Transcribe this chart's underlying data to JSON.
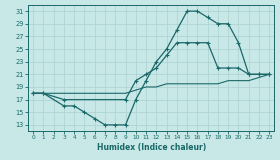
{
  "xlabel": "Humidex (Indice chaleur)",
  "bg_color": "#c8e8e8",
  "grid_color": "#b0d4d4",
  "line_color": "#1a6868",
  "xlim": [
    -0.5,
    23.5
  ],
  "ylim": [
    12,
    32
  ],
  "xticks": [
    0,
    1,
    2,
    3,
    4,
    5,
    6,
    7,
    8,
    9,
    10,
    11,
    12,
    13,
    14,
    15,
    16,
    17,
    18,
    19,
    20,
    21,
    22,
    23
  ],
  "yticks": [
    13,
    15,
    17,
    19,
    21,
    23,
    25,
    27,
    29,
    31
  ],
  "curve1_x": [
    0,
    1,
    3,
    4,
    5,
    6,
    7,
    8,
    9,
    10,
    11,
    12,
    13,
    14,
    15,
    16,
    17,
    18,
    19,
    20,
    21,
    22,
    23
  ],
  "curve1_y": [
    18,
    18,
    16,
    16,
    15,
    14,
    13,
    13,
    13,
    17,
    20,
    23,
    25,
    28,
    31,
    31,
    30,
    29,
    29,
    26,
    21,
    21,
    21
  ],
  "curve2_x": [
    0,
    1,
    3,
    9,
    10,
    11,
    12,
    13,
    14,
    15,
    16,
    17,
    18,
    19,
    20,
    21,
    22,
    23
  ],
  "curve2_y": [
    18,
    18,
    17,
    17,
    20,
    21,
    22,
    24,
    26,
    26,
    26,
    26,
    22,
    22,
    22,
    21,
    21,
    21
  ],
  "curve3_x": [
    0,
    1,
    2,
    3,
    4,
    5,
    6,
    7,
    8,
    9,
    10,
    11,
    12,
    13,
    14,
    15,
    16,
    17,
    18,
    19,
    20,
    21,
    22,
    23
  ],
  "curve3_y": [
    18,
    18,
    18,
    18,
    18,
    18,
    18,
    18,
    18,
    18,
    18.5,
    19,
    19,
    19.5,
    19.5,
    19.5,
    19.5,
    19.5,
    19.5,
    20,
    20,
    20,
    20.5,
    21
  ]
}
